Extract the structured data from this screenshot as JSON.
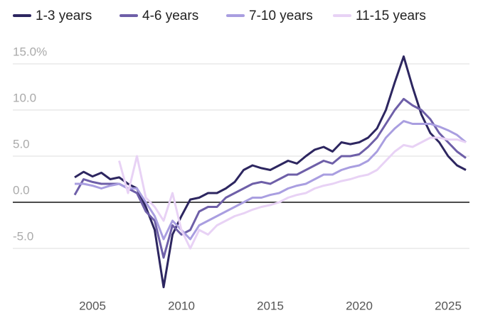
{
  "chart_data": {
    "type": "line",
    "x": [
      2004.0,
      2004.5,
      2005.0,
      2005.5,
      2006.0,
      2006.5,
      2007.0,
      2007.5,
      2008.0,
      2008.5,
      2009.0,
      2009.5,
      2010.0,
      2010.5,
      2011.0,
      2011.5,
      2012.0,
      2012.5,
      2013.0,
      2013.5,
      2014.0,
      2014.5,
      2015.0,
      2015.5,
      2016.0,
      2016.5,
      2017.0,
      2017.5,
      2018.0,
      2018.5,
      2019.0,
      2019.5,
      2020.0,
      2020.5,
      2021.0,
      2021.5,
      2022.0,
      2022.5,
      2023.0,
      2023.5,
      2024.0,
      2024.5,
      2025.0,
      2025.5,
      2026.0
    ],
    "series": [
      {
        "name": "1-3 years",
        "color": "#2d2660",
        "values": [
          2.7,
          3.3,
          2.8,
          3.2,
          2.5,
          2.7,
          2.0,
          1.5,
          -0.5,
          -3.0,
          -9.2,
          -3.5,
          -1.5,
          0.3,
          0.5,
          1.0,
          1.0,
          1.5,
          2.2,
          3.5,
          4.0,
          3.7,
          3.5,
          4.0,
          4.5,
          4.2,
          5.0,
          5.7,
          6.0,
          5.5,
          6.5,
          6.3,
          6.5,
          7.0,
          8.0,
          10.0,
          13.0,
          15.8,
          12.5,
          9.5,
          7.5,
          6.5,
          5.0,
          4.0,
          3.5
        ]
      },
      {
        "name": "4-6 years",
        "color": "#6e5fa8",
        "values": [
          0.8,
          2.5,
          2.2,
          2.0,
          2.0,
          2.0,
          1.5,
          1.0,
          -1.0,
          -2.0,
          -6.0,
          -2.5,
          -3.5,
          -3.0,
          -1.0,
          -0.5,
          -0.5,
          0.5,
          1.0,
          1.5,
          2.0,
          2.2,
          2.0,
          2.5,
          3.0,
          3.0,
          3.5,
          4.0,
          4.5,
          4.2,
          5.0,
          5.0,
          5.2,
          6.0,
          7.0,
          8.5,
          10.0,
          11.2,
          10.5,
          10.0,
          9.0,
          7.5,
          6.5,
          5.5,
          4.8
        ]
      },
      {
        "name": "7-10 years",
        "color": "#a99ee0",
        "values": [
          2.0,
          2.0,
          1.8,
          1.5,
          1.8,
          2.0,
          1.5,
          1.5,
          0.0,
          -1.5,
          -4.0,
          -2.0,
          -3.0,
          -4.0,
          -2.5,
          -2.0,
          -1.5,
          -1.0,
          -0.5,
          0.0,
          0.5,
          0.5,
          0.8,
          1.0,
          1.5,
          1.8,
          2.0,
          2.5,
          3.0,
          3.0,
          3.5,
          3.8,
          4.0,
          4.5,
          5.5,
          7.0,
          8.0,
          8.8,
          8.5,
          8.5,
          8.5,
          8.2,
          7.8,
          7.3,
          6.5
        ]
      },
      {
        "name": "11-15 years",
        "color": "#e8d2f5",
        "values": [
          null,
          null,
          null,
          null,
          null,
          4.5,
          1.0,
          5.0,
          0.5,
          -0.5,
          -2.0,
          1.0,
          -3.0,
          -5.0,
          -3.0,
          -3.5,
          -2.5,
          -2.0,
          -1.5,
          -1.2,
          -0.8,
          -0.5,
          -0.3,
          0.0,
          0.5,
          0.8,
          1.0,
          1.5,
          1.8,
          2.0,
          2.3,
          2.5,
          2.8,
          3.0,
          3.5,
          4.5,
          5.5,
          6.2,
          6.0,
          6.5,
          7.0,
          7.0,
          6.8,
          6.8,
          6.5
        ]
      }
    ],
    "xlim": [
      2002.8,
      2026.2
    ],
    "xticks": [
      2005,
      2010,
      2015,
      2020,
      2025
    ],
    "ylim": [
      -9.5,
      16
    ],
    "yticks": [
      {
        "value": -5,
        "label": "-5.0"
      },
      {
        "value": 0,
        "label": "0.0"
      },
      {
        "value": 5,
        "label": "5.0"
      },
      {
        "value": 10,
        "label": "10.0"
      },
      {
        "value": 15,
        "label": "15.0%"
      }
    ],
    "grid": true
  }
}
